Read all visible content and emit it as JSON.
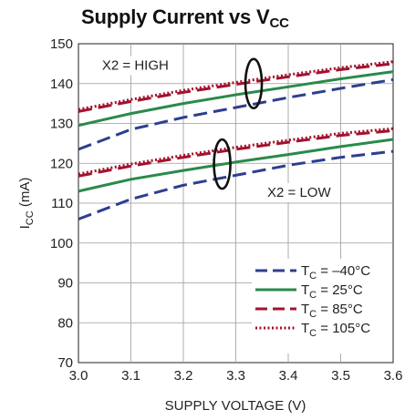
{
  "chart_data": {
    "type": "line",
    "title": {
      "main": "Supply Current vs V",
      "sub": "CC"
    },
    "xlabel": "SUPPLY VOLTAGE (V)",
    "ylabel": {
      "main": "I",
      "sub": "CC",
      "rest": " (mA)"
    },
    "xlim": [
      3.0,
      3.6
    ],
    "ylim": [
      70,
      150
    ],
    "xticks": [
      "3.0",
      "3.1",
      "3.2",
      "3.3",
      "3.4",
      "3.5",
      "3.6"
    ],
    "yticks": [
      "70",
      "80",
      "90",
      "100",
      "110",
      "120",
      "130",
      "140",
      "150"
    ],
    "grid": true,
    "legend_position": "bottom-right",
    "series": [
      {
        "name": "TC = –40°C",
        "legend": {
          "main": "T",
          "sub": "C",
          "rest": " = –40°C"
        },
        "color": "#2e3e8e",
        "style": "dash",
        "high": {
          "x": [
            3.0,
            3.1,
            3.2,
            3.3,
            3.4,
            3.5,
            3.6
          ],
          "y": [
            123.5,
            128.5,
            131.5,
            134.0,
            136.5,
            138.8,
            141.0
          ]
        },
        "low": {
          "x": [
            3.0,
            3.1,
            3.2,
            3.3,
            3.4,
            3.5,
            3.6
          ],
          "y": [
            106.0,
            111.0,
            114.5,
            117.0,
            119.5,
            121.5,
            123.0
          ]
        }
      },
      {
        "name": "TC = 25°C",
        "legend": {
          "main": "T",
          "sub": "C",
          "rest": " = 25°C"
        },
        "color": "#2a8a4a",
        "style": "solid",
        "high": {
          "x": [
            3.0,
            3.1,
            3.2,
            3.3,
            3.4,
            3.5,
            3.6
          ],
          "y": [
            129.5,
            132.5,
            135.0,
            137.2,
            139.2,
            141.2,
            143.0
          ]
        },
        "low": {
          "x": [
            3.0,
            3.1,
            3.2,
            3.3,
            3.4,
            3.5,
            3.6
          ],
          "y": [
            113.0,
            116.0,
            118.2,
            120.3,
            122.2,
            124.2,
            126.0
          ]
        }
      },
      {
        "name": "TC = 85°C",
        "legend": {
          "main": "T",
          "sub": "C",
          "rest": " = 85°C"
        },
        "color": "#a3122e",
        "style": "dash",
        "high": {
          "x": [
            3.0,
            3.1,
            3.2,
            3.3,
            3.4,
            3.5,
            3.6
          ],
          "y": [
            133.0,
            135.5,
            137.8,
            139.8,
            141.7,
            143.5,
            145.0
          ]
        },
        "low": {
          "x": [
            3.0,
            3.1,
            3.2,
            3.3,
            3.4,
            3.5,
            3.6
          ],
          "y": [
            116.8,
            119.3,
            121.5,
            123.5,
            125.3,
            127.0,
            128.2
          ]
        }
      },
      {
        "name": "TC = 105°C",
        "legend": {
          "main": "T",
          "sub": "C",
          "rest": " = 105°C"
        },
        "color": "#a3122e",
        "style": "dot",
        "high": {
          "x": [
            3.0,
            3.1,
            3.2,
            3.3,
            3.4,
            3.5,
            3.6
          ],
          "y": [
            133.5,
            136.0,
            138.3,
            140.3,
            142.2,
            144.0,
            145.5
          ]
        },
        "low": {
          "x": [
            3.0,
            3.1,
            3.2,
            3.3,
            3.4,
            3.5,
            3.6
          ],
          "y": [
            117.3,
            119.8,
            122.0,
            124.0,
            125.8,
            127.5,
            128.7
          ]
        }
      }
    ],
    "annotations": [
      {
        "text": "X2 = HIGH",
        "x": 3.045,
        "y": 143.5,
        "ellipse": {
          "x": 3.334,
          "y": 140.0
        }
      },
      {
        "text": "X2 = LOW",
        "x": 3.36,
        "y": 111.6,
        "ellipse": {
          "x": 3.274,
          "y": 119.8
        }
      }
    ]
  }
}
